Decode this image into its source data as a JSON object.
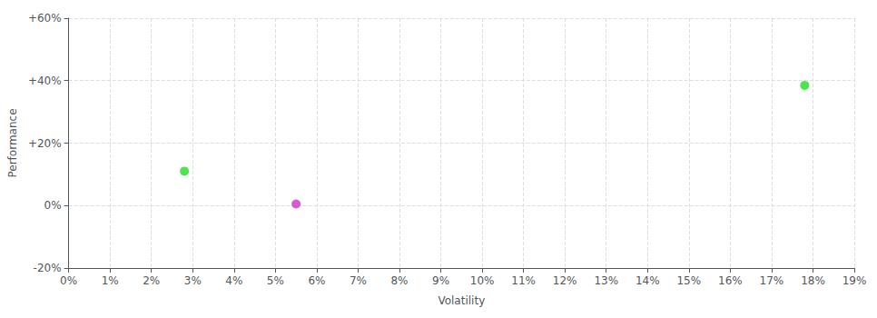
{
  "chart_data": {
    "type": "scatter",
    "xlabel": "Volatility",
    "ylabel": "Performance",
    "x": [
      0.028,
      0.055,
      0.178
    ],
    "values": [
      0.11,
      0.005,
      0.385
    ],
    "colors": [
      "#22dd22",
      "#cc33cc",
      "#22dd22"
    ],
    "xlim": [
      0.0,
      0.19
    ],
    "ylim": [
      -0.2,
      0.6
    ],
    "xticks": [
      {
        "value": 0.0,
        "label": "0%"
      },
      {
        "value": 0.01,
        "label": "1%"
      },
      {
        "value": 0.02,
        "label": "2%"
      },
      {
        "value": 0.03,
        "label": "3%"
      },
      {
        "value": 0.04,
        "label": "4%"
      },
      {
        "value": 0.05,
        "label": "5%"
      },
      {
        "value": 0.06,
        "label": "6%"
      },
      {
        "value": 0.07,
        "label": "7%"
      },
      {
        "value": 0.08,
        "label": "8%"
      },
      {
        "value": 0.09,
        "label": "9%"
      },
      {
        "value": 0.1,
        "label": "10%"
      },
      {
        "value": 0.11,
        "label": "11%"
      },
      {
        "value": 0.12,
        "label": "12%"
      },
      {
        "value": 0.13,
        "label": "13%"
      },
      {
        "value": 0.14,
        "label": "14%"
      },
      {
        "value": 0.15,
        "label": "15%"
      },
      {
        "value": 0.16,
        "label": "16%"
      },
      {
        "value": 0.17,
        "label": "17%"
      },
      {
        "value": 0.18,
        "label": "18%"
      },
      {
        "value": 0.19,
        "label": "19%"
      }
    ],
    "yticks": [
      {
        "value": -0.2,
        "label": "-20%"
      },
      {
        "value": 0.0,
        "label": "0%"
      },
      {
        "value": 0.2,
        "label": "+20%"
      },
      {
        "value": 0.4,
        "label": "+40%"
      },
      {
        "value": 0.6,
        "label": "+60%"
      }
    ],
    "grid": true
  }
}
